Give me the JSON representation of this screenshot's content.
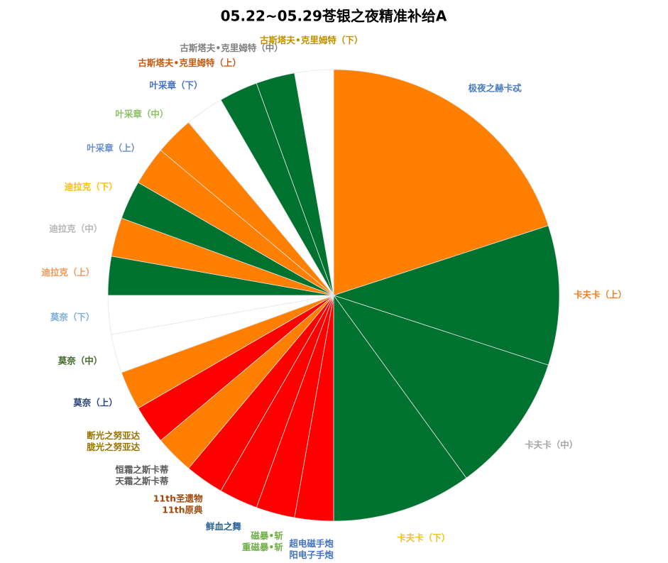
{
  "chart_data": {
    "type": "pie",
    "title": "05.22~05.29苍银之夜精准补给A",
    "categories": [
      "极夜之赫卡忒",
      "卡夫卡（上）",
      "卡夫卡（中）",
      "卡夫卡（下）",
      [
        "超电磁手炮",
        "阳电子手炮"
      ],
      [
        "磁暴•斩",
        "重磁暴•斩"
      ],
      "鲜血之舞",
      [
        "11th圣遗物",
        "11th原典"
      ],
      [
        "恒霜之斯卡蒂",
        "天霜之斯卡蒂"
      ],
      [
        "断光之努亚达",
        "胧光之努亚达"
      ],
      "莫奈（上）",
      "莫奈（中）",
      "莫奈（下）",
      "迪拉克（上）",
      "迪拉克（中）",
      "迪拉克（下）",
      "叶采章（上）",
      "叶采章（中）",
      "叶采章（下）",
      "古斯塔夫•克里姆特（上）",
      "古斯塔夫•克里姆特（中）",
      "古斯塔夫•克里姆特（下）"
    ],
    "values": [
      72,
      36,
      36,
      36,
      10,
      10,
      10,
      10,
      10,
      10,
      10,
      10,
      10,
      10,
      10,
      10,
      10,
      10,
      10,
      10,
      10,
      10
    ],
    "colors": [
      "#ff7f00",
      "#007230",
      "#007230",
      "#007230",
      "#ff0000",
      "#ff0000",
      "#ff0000",
      "#ff0000",
      "#ff7f00",
      "#ff0000",
      "#ff7f00",
      "#ffffff",
      "#ffffff",
      "#007230",
      "#ff7f00",
      "#007230",
      "#ff7f00",
      "#ff7f00",
      "#ffffff",
      "#007230",
      "#007230",
      "#ffffff"
    ],
    "label_colors": [
      "#4a7ebb",
      "#f07d22",
      "#a6a6a6",
      "#f0c020",
      "#4472c4",
      "#70ad47",
      "#255e91",
      "#9e480e",
      "#595959",
      "#997300",
      "#264478",
      "#43682b",
      "#7cafdd",
      "#f1975a",
      "#b7b7b7",
      "#ffc000",
      "#698ed0",
      "#8cc168",
      "#4472c4",
      "#c55a11",
      "#7f7f7f",
      "#bf9000"
    ]
  }
}
